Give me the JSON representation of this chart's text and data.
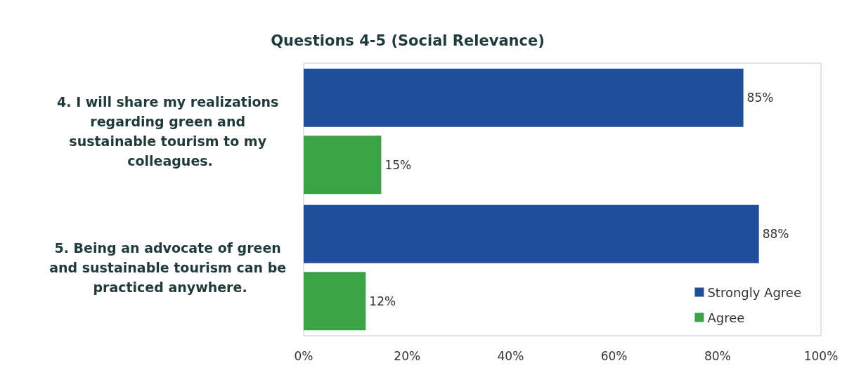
{
  "chart_data": {
    "type": "bar",
    "orientation": "horizontal",
    "title": "Questions 4-5 (Social Relevance)",
    "categories": [
      "4. I will share my realizations regarding green and sustainable tourism to my colleagues.",
      "5. Being an advocate of green and sustainable tourism can be practiced anywhere."
    ],
    "series": [
      {
        "name": "Strongly Agree",
        "color": "#1f4e9a",
        "values": [
          85,
          88
        ],
        "value_labels": [
          "85%",
          "88%"
        ]
      },
      {
        "name": "Agree",
        "color": "#3aa346",
        "values": [
          15,
          12
        ],
        "value_labels": [
          "15%",
          "12%"
        ]
      }
    ],
    "xlim": [
      0,
      100
    ],
    "xticks": [
      {
        "value": 0,
        "label": "0%"
      },
      {
        "value": 20,
        "label": "20%"
      },
      {
        "value": 40,
        "label": "40%"
      },
      {
        "value": 60,
        "label": "60%"
      },
      {
        "value": 80,
        "label": "80%"
      },
      {
        "value": 100,
        "label": "100%"
      }
    ],
    "legend": "bottom right",
    "grid": false
  }
}
